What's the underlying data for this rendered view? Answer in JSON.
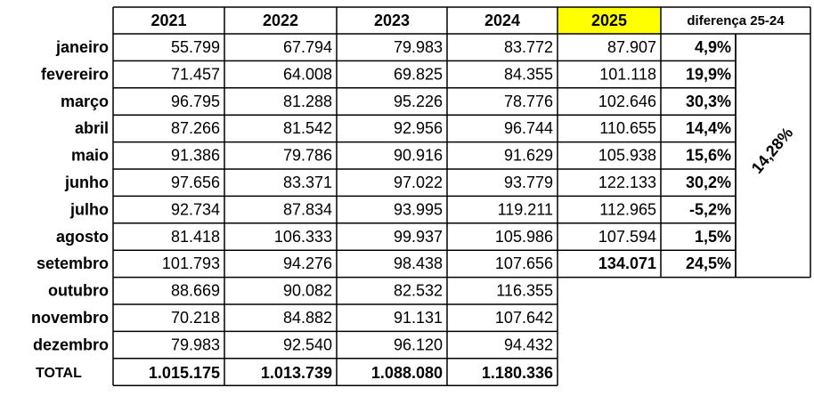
{
  "table": {
    "header": [
      "2021",
      "2022",
      "2023",
      "2024",
      "2025",
      "diferença 25-24"
    ],
    "rows": [
      [
        "janeiro",
        "55.799",
        "67.794",
        "79.983",
        "83.772",
        "87.907",
        "4,9%"
      ],
      [
        "fevereiro",
        "71.457",
        "64.008",
        "69.825",
        "84.355",
        "101.118",
        "19,9%"
      ],
      [
        "março",
        "96.795",
        "81.288",
        "95.226",
        "78.776",
        "102.646",
        "30,3%"
      ],
      [
        "abril",
        "87.266",
        "81.542",
        "92.956",
        "96.744",
        "110.655",
        "14,4%"
      ],
      [
        "maio",
        "91.386",
        "79.786",
        "90.916",
        "91.629",
        "105.938",
        "15,6%"
      ],
      [
        "junho",
        "97.656",
        "83.371",
        "97.022",
        "93.779",
        "122.133",
        "30,2%"
      ],
      [
        "julho",
        "92.734",
        "87.834",
        "93.995",
        "119.211",
        "112.965",
        "-5,2%"
      ],
      [
        "agosto",
        "81.418",
        "106.333",
        "99.937",
        "105.986",
        "107.594",
        "1,5%"
      ],
      [
        "setembro",
        "101.793",
        "94.276",
        "98.438",
        "107.656",
        "134.071",
        "24,5%"
      ],
      [
        "outubro",
        "88.669",
        "90.082",
        "82.532",
        "116.355"
      ],
      [
        "novembro",
        "70.218",
        "84.882",
        "91.131",
        "107.642"
      ],
      [
        "dezembro",
        "79.983",
        "92.540",
        "96.120",
        "94.432"
      ]
    ],
    "total": [
      "TOTAL",
      "1.015.175",
      "1.013.739",
      "1.088.080",
      "1.180.336"
    ],
    "average_difference": "14,28%"
  }
}
